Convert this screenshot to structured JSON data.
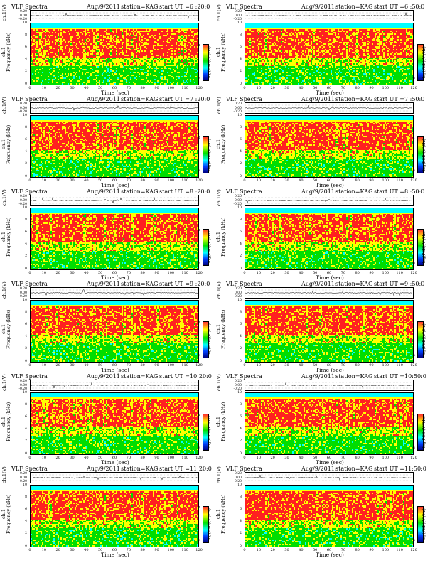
{
  "header": {
    "title": "VLF Spectra",
    "date": "Aug/9/2011",
    "station": "station=KAG"
  },
  "axes": {
    "waveform_ylabel": "ch.1(V)",
    "waveform_ticks": [
      "0.20",
      "0.00",
      "-0.20"
    ],
    "spectrogram_ylabel_line1": "ch.1",
    "spectrogram_ylabel_line2": "Frequency (kHz)",
    "freq_ticks": [
      "10",
      "8",
      "6",
      "4",
      "2",
      "0"
    ],
    "time_ticks": [
      "0",
      "10",
      "20",
      "30",
      "40",
      "50",
      "60",
      "70",
      "80",
      "90",
      "100",
      "110",
      "120"
    ],
    "xlabel": "Time (sec)",
    "colorbar_label": "log(PSD)(V²/Hz)",
    "colorbar_ticks": [
      "-1",
      "-8"
    ]
  },
  "colors": {
    "high": "#ff2020",
    "mid_high": "#ffff00",
    "mid": "#00dd00",
    "low": "#00ffff",
    "lowest": "#0030ff"
  },
  "chart_data": [
    {
      "type": "heatmap",
      "start_ut": "start  UT  =6 :20:0",
      "xlim": [
        0,
        120
      ],
      "ylim": [
        0,
        10
      ],
      "seed": 1
    },
    {
      "type": "heatmap",
      "start_ut": "start  UT  =6 :50:0",
      "xlim": [
        0,
        120
      ],
      "ylim": [
        0,
        10
      ],
      "seed": 2
    },
    {
      "type": "heatmap",
      "start_ut": "start  UT  =7 :20:0",
      "xlim": [
        0,
        120
      ],
      "ylim": [
        0,
        10
      ],
      "seed": 3
    },
    {
      "type": "heatmap",
      "start_ut": "start  UT  =7 :50:0",
      "xlim": [
        0,
        120
      ],
      "ylim": [
        0,
        10
      ],
      "seed": 4
    },
    {
      "type": "heatmap",
      "start_ut": "start  UT  =8 :20:0",
      "xlim": [
        0,
        120
      ],
      "ylim": [
        0,
        10
      ],
      "seed": 5
    },
    {
      "type": "heatmap",
      "start_ut": "start  UT  =8 :50:0",
      "xlim": [
        0,
        120
      ],
      "ylim": [
        0,
        10
      ],
      "seed": 6
    },
    {
      "type": "heatmap",
      "start_ut": "start  UT  =9 :20:0",
      "xlim": [
        0,
        120
      ],
      "ylim": [
        0,
        10
      ],
      "seed": 7
    },
    {
      "type": "heatmap",
      "start_ut": "start  UT  =9 :50:0",
      "xlim": [
        0,
        120
      ],
      "ylim": [
        0,
        10
      ],
      "seed": 8
    },
    {
      "type": "heatmap",
      "start_ut": "start  UT  =10:20:0",
      "xlim": [
        0,
        120
      ],
      "ylim": [
        0,
        10
      ],
      "seed": 9
    },
    {
      "type": "heatmap",
      "start_ut": "start  UT  =10:50:0",
      "xlim": [
        0,
        120
      ],
      "ylim": [
        0,
        10
      ],
      "seed": 10
    },
    {
      "type": "heatmap",
      "start_ut": "start  UT  =11:20:0",
      "xlim": [
        0,
        120
      ],
      "ylim": [
        0,
        10
      ],
      "seed": 11
    },
    {
      "type": "heatmap",
      "start_ut": "start  UT  =11:50:0",
      "xlim": [
        0,
        120
      ],
      "ylim": [
        0,
        10
      ],
      "seed": 12
    }
  ]
}
